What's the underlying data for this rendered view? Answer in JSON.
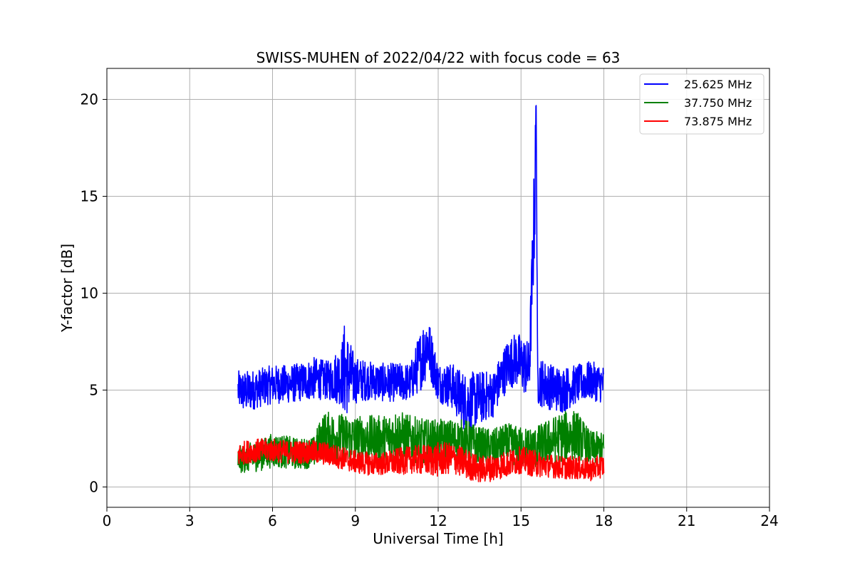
{
  "chart_data": {
    "type": "line",
    "title": "SWISS-MUHEN of 2022/04/22 with focus code = 63",
    "xlabel": "Universal Time [h]",
    "ylabel": "Y-factor [dB]",
    "xlim": [
      0,
      24
    ],
    "ylim": [
      -1.05,
      21.6
    ],
    "xticks": [
      "0",
      "3",
      "6",
      "9",
      "12",
      "15",
      "18",
      "21",
      "24"
    ],
    "yticks": [
      "0",
      "5",
      "10",
      "15",
      "20"
    ],
    "grid": true,
    "legend_position": "top-right",
    "series": [
      {
        "name": "25.625 MHz",
        "color": "#0000ff",
        "x": [
          4.75,
          5.0,
          5.5,
          6.0,
          6.5,
          7.0,
          7.5,
          8.0,
          8.5,
          8.6,
          9.0,
          9.5,
          10.0,
          10.5,
          11.0,
          11.5,
          11.6,
          12.0,
          12.5,
          13.0,
          13.5,
          14.0,
          14.5,
          14.8,
          15.0,
          15.3,
          15.5,
          15.55,
          15.6,
          16.0,
          16.5,
          17.0,
          17.5,
          18.0
        ],
        "values": [
          5.0,
          4.9,
          5.1,
          5.3,
          5.3,
          5.4,
          5.6,
          5.5,
          5.8,
          6.0,
          5.5,
          5.5,
          5.4,
          5.4,
          5.4,
          7.0,
          7.5,
          5.4,
          5.2,
          4.3,
          4.6,
          4.8,
          6.3,
          6.6,
          6.4,
          6.0,
          15.0,
          20.0,
          5.5,
          5.2,
          5.0,
          5.3,
          5.5,
          5.3
        ],
        "band": [
          1.0,
          1.1,
          1.0,
          1.0,
          1.0,
          1.0,
          1.1,
          1.0,
          1.6,
          2.5,
          1.2,
          1.0,
          1.0,
          1.0,
          1.0,
          1.8,
          1.6,
          1.0,
          1.2,
          1.6,
          1.4,
          1.2,
          1.3,
          1.4,
          1.5,
          1.5,
          3.0,
          0.6,
          1.3,
          1.2,
          1.2,
          1.0,
          1.0,
          1.0
        ]
      },
      {
        "name": "37.750 MHz",
        "color": "#008000",
        "x": [
          4.75,
          5.5,
          6.0,
          7.0,
          7.5,
          7.8,
          8.0,
          8.5,
          9.0,
          10.0,
          10.5,
          11.0,
          11.5,
          12.0,
          12.5,
          13.0,
          13.5,
          14.0,
          14.5,
          15.0,
          15.5,
          16.0,
          16.5,
          17.0,
          17.5,
          18.0
        ],
        "values": [
          1.4,
          1.6,
          1.9,
          1.7,
          1.8,
          2.6,
          2.6,
          2.6,
          2.5,
          2.5,
          2.7,
          2.5,
          2.3,
          2.4,
          2.4,
          2.4,
          2.1,
          2.0,
          2.2,
          2.1,
          2.0,
          2.3,
          2.6,
          2.7,
          2.0,
          2.0
        ],
        "band": [
          0.7,
          0.8,
          0.9,
          0.8,
          0.8,
          1.2,
          1.3,
          1.2,
          1.2,
          1.2,
          1.3,
          1.2,
          1.2,
          1.1,
          1.1,
          1.1,
          1.0,
          1.0,
          1.1,
          1.0,
          1.1,
          1.2,
          1.3,
          1.3,
          0.9,
          0.8
        ]
      },
      {
        "name": "73.875 MHz",
        "color": "#ff0000",
        "x": [
          4.75,
          5.0,
          5.5,
          6.0,
          6.5,
          7.0,
          7.5,
          8.0,
          8.5,
          9.0,
          9.5,
          10.0,
          10.5,
          11.0,
          11.5,
          12.0,
          12.5,
          13.0,
          13.5,
          14.0,
          14.5,
          15.0,
          15.5,
          16.0,
          16.5,
          17.0,
          17.5,
          18.0
        ],
        "values": [
          1.6,
          1.8,
          1.9,
          1.9,
          1.8,
          1.8,
          1.8,
          1.7,
          1.5,
          1.3,
          1.2,
          1.2,
          1.3,
          1.4,
          1.4,
          1.4,
          1.5,
          1.2,
          0.9,
          1.0,
          1.2,
          1.4,
          1.2,
          1.1,
          1.0,
          1.0,
          0.9,
          1.1
        ],
        "band": [
          0.6,
          0.6,
          0.6,
          0.6,
          0.6,
          0.6,
          0.6,
          0.6,
          0.6,
          0.6,
          0.6,
          0.6,
          0.7,
          0.7,
          0.8,
          0.9,
          0.8,
          0.8,
          0.7,
          0.7,
          0.7,
          0.7,
          0.7,
          0.6,
          0.6,
          0.6,
          0.6,
          0.6
        ]
      }
    ]
  }
}
